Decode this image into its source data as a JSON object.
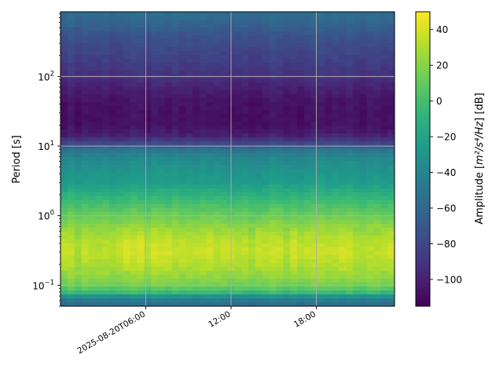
{
  "chart_data": {
    "type": "heatmap",
    "xlabel": "",
    "ylabel": "Period [s]",
    "y_scale": "log",
    "ylim": [
      0.05,
      850
    ],
    "xlim": [
      "2025-08-20T00:00",
      "2025-08-20T23:30"
    ],
    "grid": true,
    "x_ticks": [
      {
        "x": "2025-08-20T06:00",
        "label": "2025-08-20T06:00"
      },
      {
        "x": "2025-08-20T12:00",
        "label": "12:00"
      },
      {
        "x": "2025-08-20T18:00",
        "label": "18:00"
      }
    ],
    "y_ticks": [
      {
        "value": 0.1,
        "mant": "10",
        "exp": "−1"
      },
      {
        "value": 1,
        "mant": "10",
        "exp": "0"
      },
      {
        "value": 10,
        "mant": "10",
        "exp": "1"
      },
      {
        "value": 100,
        "mant": "10",
        "exp": "2"
      }
    ],
    "colorbar": {
      "label_prefix": "Amplitude [",
      "label_unit": "m²/s⁴/Hz",
      "label_suffix": "] [dB]",
      "range": [
        -115,
        50
      ],
      "colormap": "viridis",
      "ticks": [
        "40",
        "20",
        "0",
        "−20",
        "−40",
        "−60",
        "−80",
        "−100"
      ],
      "tick_values": [
        40,
        20,
        0,
        -20,
        -40,
        -60,
        -80,
        -100
      ]
    },
    "profile": {
      "description_free": true,
      "period_s": [
        0.05,
        0.06,
        0.07,
        0.08,
        0.1,
        0.13,
        0.17,
        0.22,
        0.3,
        0.4,
        0.55,
        0.75,
        1.0,
        1.5,
        2.0,
        3.0,
        5.0,
        7.0,
        9.0,
        11.0,
        14.0,
        20.0,
        30.0,
        45.0,
        70.0,
        100.0,
        150.0,
        250.0,
        400.0,
        600.0,
        850.0
      ],
      "amplitude_db": [
        -60,
        -48,
        -30,
        0,
        15,
        22,
        28,
        32,
        36,
        34,
        28,
        20,
        12,
        0,
        -10,
        -25,
        -32,
        -40,
        -52,
        -80,
        -100,
        -108,
        -108,
        -106,
        -100,
        -92,
        -86,
        -80,
        -72,
        -62,
        -55
      ]
    }
  }
}
